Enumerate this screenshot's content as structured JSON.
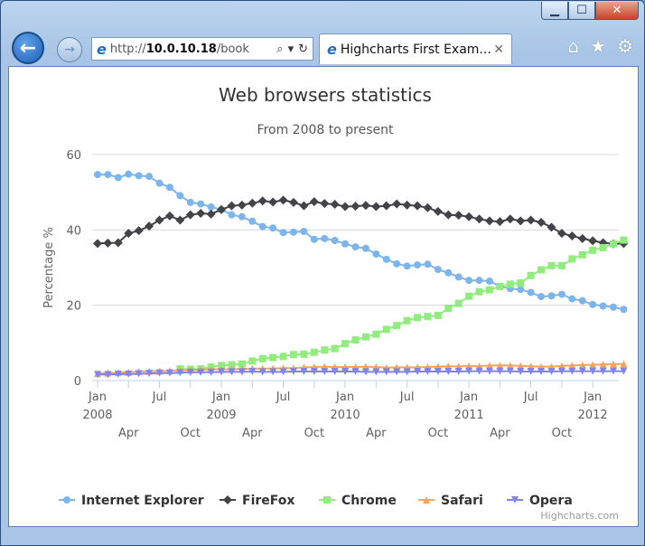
{
  "window": {
    "minimize": "▁",
    "maximize": "☐",
    "close": "✕"
  },
  "nav": {
    "back_icon": "back-arrow-icon",
    "forward_icon": "forward-arrow-icon",
    "address_prefix": "http://",
    "address_host": "10.0.10.18",
    "address_path": "/book"
  },
  "tab": {
    "title": "Highcharts First Exam...",
    "close": "✕"
  },
  "tools": {
    "home": "⌂",
    "favorites": "★",
    "settings": "⚙"
  },
  "chart_data": {
    "type": "line",
    "title": "Web browsers statistics",
    "subtitle": "From 2008 to present",
    "ylabel": "Percentage %",
    "xlabel": "",
    "ylim": [
      0,
      60
    ],
    "yticks": [
      0,
      20,
      40,
      60
    ],
    "grid": true,
    "legend_position": "bottom",
    "credits": "Highcharts.com",
    "xrange": [
      "2008-01",
      "2012-03"
    ],
    "xticks": [
      {
        "month": "2008-01",
        "label": "Jan",
        "year": "2008"
      },
      {
        "month": "2008-04",
        "label": "Apr"
      },
      {
        "month": "2008-07",
        "label": "Jul"
      },
      {
        "month": "2008-10",
        "label": "Oct"
      },
      {
        "month": "2009-01",
        "label": "Jan",
        "year": "2009"
      },
      {
        "month": "2009-04",
        "label": "Apr"
      },
      {
        "month": "2009-07",
        "label": "Jul"
      },
      {
        "month": "2009-10",
        "label": "Oct"
      },
      {
        "month": "2010-01",
        "label": "Jan",
        "year": "2010"
      },
      {
        "month": "2010-04",
        "label": "Apr"
      },
      {
        "month": "2010-07",
        "label": "Jul"
      },
      {
        "month": "2010-10",
        "label": "Oct"
      },
      {
        "month": "2011-01",
        "label": "Jan",
        "year": "2011"
      },
      {
        "month": "2011-04",
        "label": "Apr"
      },
      {
        "month": "2011-07",
        "label": "Jul"
      },
      {
        "month": "2011-10",
        "label": "Oct"
      },
      {
        "month": "2012-01",
        "label": "Jan",
        "year": "2012"
      }
    ],
    "series": [
      {
        "name": "Internet Explorer",
        "color": "#7cb5ec",
        "marker": "circle",
        "start": "2008-01",
        "values": [
          54.7,
          54.7,
          53.9,
          54.8,
          54.4,
          54.2,
          52.4,
          51.3,
          49.1,
          47.3,
          46.9,
          46.1,
          45.4,
          44.0,
          43.5,
          42.3,
          40.9,
          40.5,
          39.3,
          39.4,
          39.6,
          37.5,
          37.7,
          37.2,
          36.3,
          35.5,
          35.1,
          33.6,
          32.2,
          31.0,
          30.4,
          30.7,
          30.9,
          29.5,
          28.6,
          27.5,
          26.6,
          26.6,
          26.4,
          25.0,
          24.4,
          24.2,
          23.4,
          22.3,
          22.5,
          22.9,
          21.7,
          21.2,
          20.2,
          19.8,
          19.5,
          18.9
        ]
      },
      {
        "name": "FireFox",
        "color": "#434348",
        "marker": "diamond",
        "start": "2008-01",
        "values": [
          36.4,
          36.5,
          36.6,
          39.1,
          39.8,
          41.0,
          42.6,
          43.7,
          42.6,
          44.0,
          44.4,
          44.2,
          45.4,
          46.4,
          46.6,
          47.1,
          47.7,
          47.4,
          47.9,
          47.3,
          46.4,
          47.5,
          47.0,
          46.8,
          46.2,
          46.3,
          46.5,
          46.2,
          46.4,
          46.9,
          46.6,
          46.4,
          45.9,
          44.9,
          44.0,
          43.9,
          43.5,
          42.9,
          42.4,
          42.2,
          42.9,
          42.4,
          42.6,
          42.0,
          40.7,
          39.1,
          38.4,
          37.7,
          37.1,
          36.6,
          36.3,
          36.4
        ]
      },
      {
        "name": "Chrome",
        "color": "#90ed7d",
        "marker": "square",
        "start": "2008-09",
        "values": [
          3.1,
          3.0,
          3.1,
          3.6,
          4.0,
          4.2,
          4.4,
          5.2,
          5.8,
          6.1,
          6.4,
          6.9,
          7.0,
          7.5,
          8.1,
          8.5,
          9.8,
          10.8,
          11.6,
          12.3,
          13.6,
          14.6,
          15.9,
          16.7,
          17.0,
          17.3,
          19.2,
          20.5,
          22.4,
          23.6,
          24.1,
          25.0,
          25.6,
          25.9,
          27.9,
          29.4,
          30.5,
          30.5,
          32.3,
          33.4,
          34.6,
          35.3,
          36.3,
          37.3
        ]
      },
      {
        "name": "Safari",
        "color": "#f7a35c",
        "marker": "triangle",
        "start": "2008-01",
        "values": [
          1.9,
          2.0,
          2.1,
          2.2,
          2.4,
          2.5,
          2.5,
          2.6,
          2.7,
          2.8,
          2.9,
          3.0,
          3.0,
          3.0,
          3.1,
          3.2,
          3.2,
          3.2,
          3.3,
          3.3,
          3.5,
          3.6,
          3.7,
          3.6,
          3.6,
          3.6,
          3.7,
          3.6,
          3.4,
          3.5,
          3.5,
          3.5,
          3.6,
          3.7,
          3.8,
          3.8,
          3.9,
          3.8,
          4.0,
          4.0,
          4.0,
          3.9,
          3.8,
          3.7,
          3.7,
          3.9,
          4.0,
          4.1,
          4.2,
          4.3,
          4.4,
          4.4
        ]
      },
      {
        "name": "Opera",
        "color": "#8085e9",
        "marker": "triangle-down",
        "start": "2008-01",
        "values": [
          1.6,
          1.6,
          1.7,
          1.7,
          1.8,
          1.9,
          2.0,
          2.0,
          2.1,
          2.2,
          2.2,
          2.2,
          2.3,
          2.3,
          2.3,
          2.4,
          2.3,
          2.3,
          2.3,
          2.4,
          2.4,
          2.4,
          2.4,
          2.4,
          2.4,
          2.4,
          2.3,
          2.3,
          2.3,
          2.3,
          2.3,
          2.4,
          2.4,
          2.4,
          2.4,
          2.4,
          2.5,
          2.5,
          2.5,
          2.5,
          2.5,
          2.4,
          2.4,
          2.4,
          2.4,
          2.5,
          2.5,
          2.5,
          2.5,
          2.5,
          2.5,
          2.5
        ]
      }
    ]
  }
}
